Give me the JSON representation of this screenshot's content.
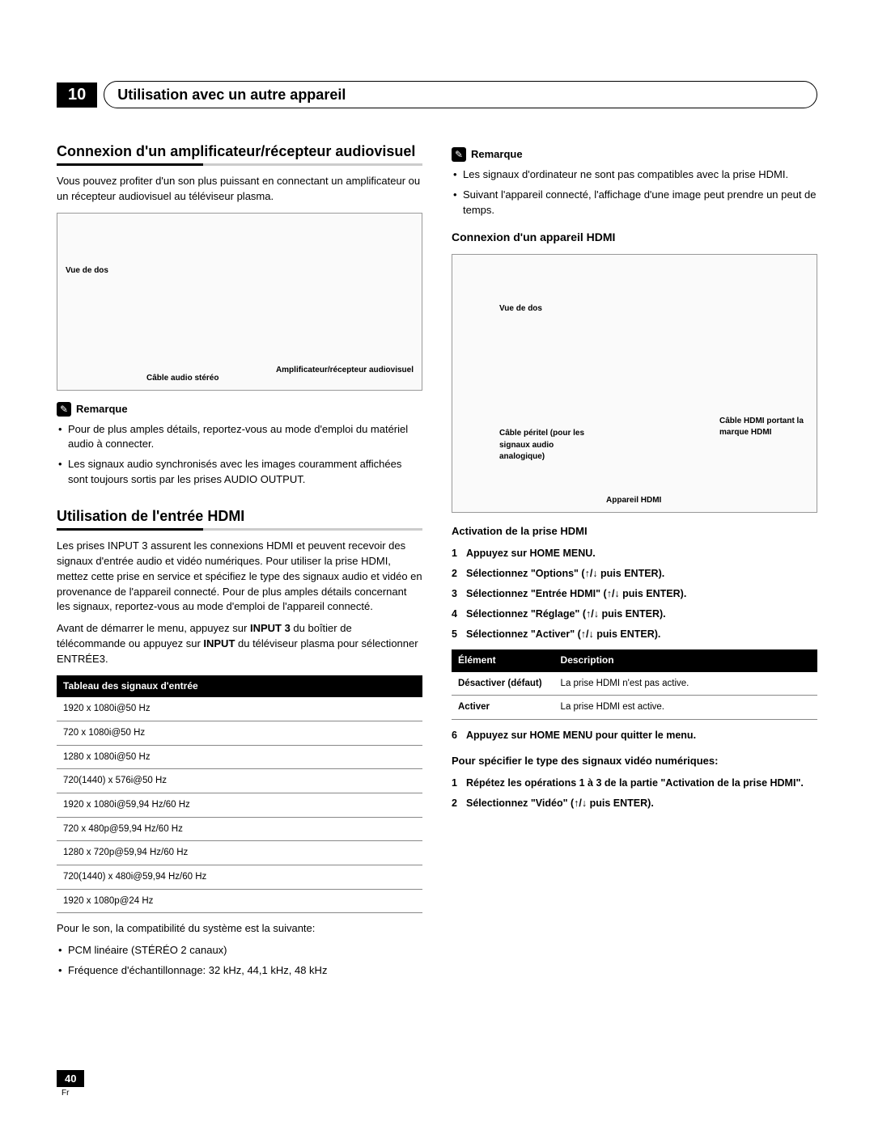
{
  "chapter": {
    "number": "10",
    "title": "Utilisation avec un autre appareil"
  },
  "left": {
    "h2a": "Connexion d'un amplificateur/récepteur audiovisuel",
    "p1": "Vous pouvez profiter d'un son plus puissant en connectant un amplificateur ou un récepteur audiovisuel au téléviseur plasma.",
    "diagram1": {
      "vue": "Vue de dos",
      "cable": "Câble audio stéréo",
      "amp": "Amplificateur/récepteur audiovisuel"
    },
    "note1_title": "Remarque",
    "note1_items": [
      "Pour de plus amples détails, reportez-vous au mode d'emploi du matériel audio à connecter.",
      "Les signaux audio synchronisés avec les images couramment affichées sont toujours sortis par les prises AUDIO OUTPUT."
    ],
    "h2b": "Utilisation de l'entrée HDMI",
    "p2": "Les prises INPUT 3 assurent les connexions HDMI et peuvent recevoir des signaux d'entrée audio et vidéo numériques. Pour utiliser la prise HDMI, mettez cette prise en service et spécifiez le type des signaux audio et vidéo en provenance de l'appareil connecté. Pour de plus amples détails concernant les signaux, reportez-vous au mode d'emploi de l'appareil connecté.",
    "p3a": "Avant de démarrer le menu, appuyez sur ",
    "p3b": "INPUT 3",
    "p3c": " du boîtier de télécommande ou appuyez sur ",
    "p3d": "INPUT",
    "p3e": " du téléviseur plasma pour sélectionner ENTRÉE3.",
    "table_header": "Tableau des signaux d'entrée",
    "signals": [
      "1920 x 1080i@50 Hz",
      "720 x 1080i@50 Hz",
      "1280 x 1080i@50 Hz",
      "720(1440) x 576i@50 Hz",
      "1920 x 1080i@59,94 Hz/60 Hz",
      "720 x 480p@59,94 Hz/60 Hz",
      "1280 x 720p@59,94 Hz/60 Hz",
      "720(1440) x 480i@59,94 Hz/60 Hz",
      "1920 x 1080p@24 Hz"
    ],
    "p4": "Pour le son, la compatibilité du système est la suivante:",
    "sound_items": [
      "PCM linéaire (STÉRÉO 2 canaux)",
      "Fréquence d'échantillonnage: 32 kHz, 44,1 kHz, 48 kHz"
    ]
  },
  "right": {
    "note2_title": "Remarque",
    "note2_items": [
      "Les signaux d'ordinateur ne sont pas compatibles avec la prise HDMI.",
      "Suivant l'appareil connecté, l'affichage d'une image peut prendre un peut de temps."
    ],
    "sub1": "Connexion d'un appareil HDMI",
    "diagram2": {
      "vue": "Vue de dos",
      "peritel": "Câble péritel (pour les signaux audio analogique)",
      "hdmi_cable": "Câble HDMI portant la marque HDMI",
      "device": "Appareil HDMI"
    },
    "sub2": "Activation de la prise HDMI",
    "steps1": [
      "Appuyez sur HOME MENU.",
      "Sélectionnez \"Options\" (↑/↓ puis ENTER).",
      "Sélectionnez \"Entrée HDMI\" (↑/↓ puis ENTER).",
      "Sélectionnez \"Réglage\" (↑/↓ puis ENTER).",
      "Sélectionnez \"Activer\" (↑/↓ puis ENTER)."
    ],
    "elem_table": {
      "headers": [
        "Élément",
        "Description"
      ],
      "rows": [
        [
          "Désactiver (défaut)",
          "La prise HDMI n'est pas active."
        ],
        [
          "Activer",
          "La prise HDMI est active."
        ]
      ]
    },
    "step6": "Appuyez sur HOME MENU pour quitter le menu.",
    "sub3": "Pour spécifier le type des signaux vidéo numériques:",
    "steps2_1": "Répétez les opérations 1 à 3 de la partie \"Activation de la prise HDMI\".",
    "steps2_2": "Sélectionnez \"Vidéo\" (↑/↓ puis ENTER)."
  },
  "footer": {
    "page": "40",
    "lang": "Fr"
  }
}
